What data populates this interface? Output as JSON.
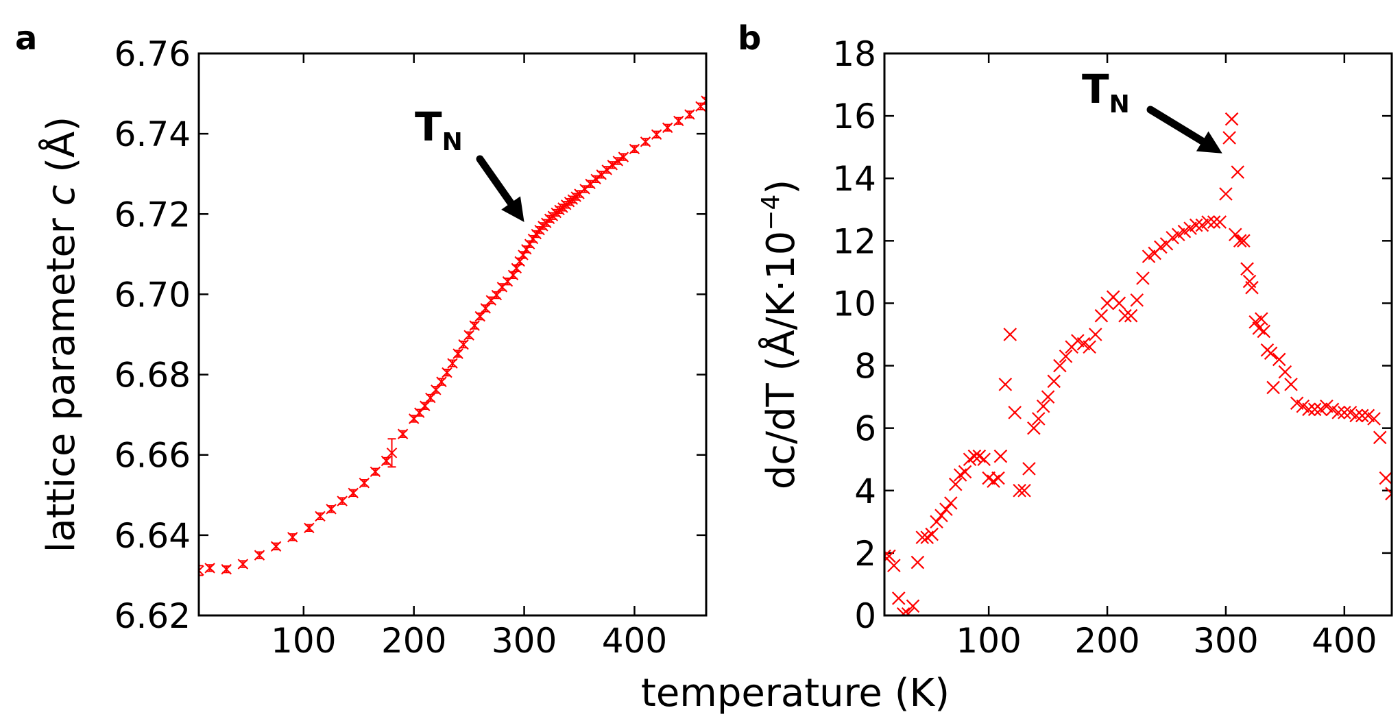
{
  "chart_data": [
    {
      "type": "scatter",
      "panel": "a",
      "ylabel": "lattice parameter c (Å)",
      "ylabel_parts": {
        "pre": "lattice parameter ",
        "italic": "c",
        "post": " (Å)"
      },
      "xlim": [
        5,
        465
      ],
      "ylim": [
        6.62,
        6.76
      ],
      "xticks": [
        "100",
        "200",
        "300",
        "400"
      ],
      "xtick_values": [
        100,
        200,
        300,
        400
      ],
      "yticks": [
        "6.62",
        "6.64",
        "6.66",
        "6.68",
        "6.70",
        "6.72",
        "6.74",
        "6.76"
      ],
      "ytick_values": [
        6.62,
        6.64,
        6.66,
        6.68,
        6.7,
        6.72,
        6.74,
        6.76
      ],
      "marker": "x",
      "color": "#ff0000",
      "error_bars": true,
      "annotation": {
        "text": "T",
        "subscript": "N",
        "arrow_tip": [
          300,
          6.718
        ]
      },
      "series": [
        {
          "x": [
            5,
            15,
            30,
            45,
            60,
            75,
            90,
            105,
            115,
            125,
            135,
            145,
            155,
            165,
            175,
            180,
            190,
            200,
            205,
            210,
            215,
            220,
            225,
            230,
            235,
            240,
            245,
            250,
            255,
            260,
            265,
            270,
            275,
            280,
            285,
            290,
            293,
            296,
            299,
            302,
            305,
            308,
            311,
            314,
            317,
            320,
            323,
            326,
            329,
            332,
            335,
            338,
            341,
            344,
            347,
            350,
            355,
            360,
            365,
            370,
            375,
            380,
            385,
            390,
            400,
            410,
            420,
            430,
            440,
            450,
            460,
            465
          ],
          "y": [
            6.6312,
            6.6318,
            6.6315,
            6.6328,
            6.635,
            6.6372,
            6.6395,
            6.6418,
            6.6447,
            6.6465,
            6.6485,
            6.6505,
            6.653,
            6.6558,
            6.6585,
            6.6605,
            6.6652,
            6.669,
            6.6705,
            6.6722,
            6.6742,
            6.6762,
            6.6782,
            6.6805,
            6.6828,
            6.6852,
            6.6875,
            6.6898,
            6.6922,
            6.6945,
            6.6965,
            6.6985,
            6.6998,
            6.7018,
            6.7032,
            6.7048,
            6.7065,
            6.7082,
            6.7098,
            6.7112,
            6.7125,
            6.7138,
            6.715,
            6.716,
            6.717,
            6.7178,
            6.7188,
            6.7195,
            6.7203,
            6.721,
            6.7216,
            6.7223,
            6.723,
            6.7236,
            6.7243,
            6.725,
            6.7262,
            6.7275,
            6.7287,
            6.7298,
            6.731,
            6.7322,
            6.7332,
            6.7342,
            6.7362,
            6.738,
            6.7398,
            6.7415,
            6.7432,
            6.7448,
            6.7468,
            6.7482
          ],
          "err": [
            0.0012,
            0.0008,
            0.0008,
            0.0008,
            0.0008,
            0.0008,
            0.0008,
            0.0008,
            0.0008,
            0.0008,
            0.0008,
            0.0008,
            0.0008,
            0.0008,
            0.0008,
            0.0035,
            0.0008,
            0.0008,
            0.0008,
            0.0008,
            0.0008,
            0.0008,
            0.0008,
            0.0008,
            0.0008,
            0.0008,
            0.0008,
            0.0008,
            0.0008,
            0.0008,
            0.0008,
            0.0008,
            0.0008,
            0.0008,
            0.0008,
            0.0008,
            0.0008,
            0.0008,
            0.0008,
            0.0008,
            0.0008,
            0.0008,
            0.0008,
            0.0008,
            0.0008,
            0.0008,
            0.0008,
            0.0008,
            0.0008,
            0.0008,
            0.0008,
            0.0008,
            0.0008,
            0.0008,
            0.0008,
            0.0008,
            0.0008,
            0.0008,
            0.0008,
            0.0008,
            0.0008,
            0.0008,
            0.0008,
            0.0008,
            0.0008,
            0.0008,
            0.0008,
            0.0008,
            0.0008,
            0.0008,
            0.0008,
            0.0008
          ]
        }
      ]
    },
    {
      "type": "scatter",
      "panel": "b",
      "ylabel": "dc/dT (Å/K·10⁻⁴)",
      "ylabel_parts": {
        "pre": "dc/dT (Å/K·10",
        "sup": "−4",
        "post": ")"
      },
      "xlim": [
        12,
        440
      ],
      "ylim": [
        0,
        18
      ],
      "xticks": [
        "100",
        "200",
        "300",
        "400"
      ],
      "xtick_values": [
        100,
        200,
        300,
        400
      ],
      "yticks": [
        "0",
        "2",
        "4",
        "6",
        "8",
        "10",
        "12",
        "14",
        "16",
        "18"
      ],
      "ytick_values": [
        0,
        2,
        4,
        6,
        8,
        10,
        12,
        14,
        16,
        18
      ],
      "marker": "x",
      "color": "#ff0000",
      "error_bars": false,
      "annotation": {
        "text": "T",
        "subscript": "N",
        "arrow_tip": [
          297,
          14.8
        ]
      },
      "series": [
        {
          "x": [
            12,
            16,
            20,
            24,
            28,
            32,
            36,
            40,
            44,
            48,
            52,
            56,
            60,
            64,
            68,
            72,
            76,
            80,
            84,
            88,
            92,
            96,
            100,
            104,
            108,
            110,
            114,
            118,
            122,
            126,
            130,
            134,
            138,
            142,
            146,
            150,
            155,
            160,
            165,
            170,
            175,
            180,
            185,
            190,
            195,
            200,
            205,
            210,
            215,
            220,
            225,
            230,
            235,
            240,
            245,
            250,
            255,
            260,
            265,
            270,
            275,
            280,
            285,
            290,
            295,
            300,
            303,
            305,
            308,
            310,
            312,
            315,
            318,
            320,
            322,
            325,
            328,
            330,
            332,
            335,
            338,
            340,
            345,
            350,
            355,
            360,
            365,
            370,
            375,
            380,
            385,
            390,
            395,
            400,
            405,
            410,
            415,
            420,
            425,
            430,
            435,
            440
          ],
          "y": [
            1.9,
            1.9,
            1.6,
            0.55,
            0.05,
            0.05,
            0.3,
            1.7,
            2.5,
            2.5,
            2.6,
            3.0,
            3.2,
            3.4,
            3.6,
            4.2,
            4.5,
            4.6,
            5.0,
            5.1,
            5.1,
            5.0,
            4.4,
            4.3,
            4.4,
            5.1,
            7.4,
            9.0,
            6.5,
            4.0,
            4.0,
            4.7,
            6.0,
            6.3,
            6.7,
            7.0,
            7.5,
            8.0,
            8.3,
            8.6,
            8.8,
            8.7,
            8.6,
            9.0,
            9.6,
            10.0,
            10.2,
            10.0,
            9.6,
            9.6,
            10.1,
            10.8,
            11.5,
            11.6,
            11.8,
            11.9,
            12.1,
            12.2,
            12.3,
            12.4,
            12.5,
            12.5,
            12.6,
            12.6,
            12.6,
            13.5,
            15.3,
            15.9,
            12.2,
            14.2,
            12.0,
            12.0,
            11.1,
            10.7,
            10.5,
            9.4,
            9.2,
            9.5,
            9.1,
            8.5,
            8.4,
            7.3,
            8.2,
            7.8,
            7.4,
            6.8,
            6.7,
            6.6,
            6.6,
            6.6,
            6.7,
            6.6,
            6.5,
            6.5,
            6.5,
            6.4,
            6.4,
            6.4,
            6.3,
            5.7,
            4.4,
            3.9
          ]
        }
      ]
    }
  ],
  "panels": {
    "a": {
      "letter": "a"
    },
    "b": {
      "letter": "b"
    }
  },
  "xlabel": "temperature (K)"
}
